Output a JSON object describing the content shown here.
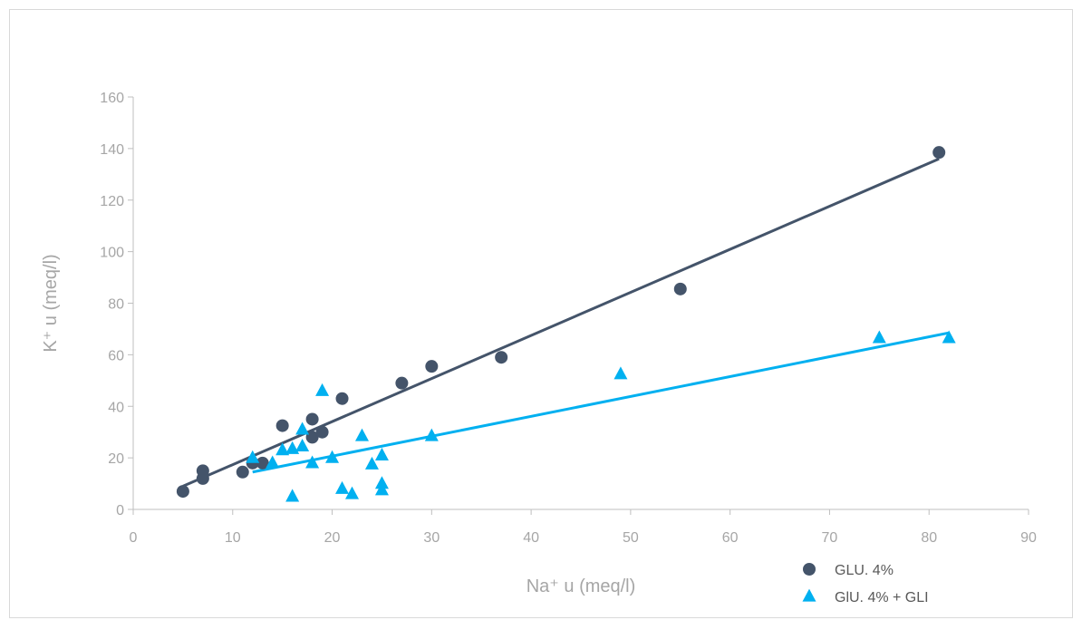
{
  "chart_data": {
    "type": "scatter",
    "xlabel": "Na⁺ u (meq/l)",
    "ylabel": "K⁺ u (meq/l)",
    "xlim": [
      0,
      90
    ],
    "ylim": [
      0,
      160
    ],
    "xticks": [
      0,
      10,
      20,
      30,
      40,
      50,
      60,
      70,
      80,
      90
    ],
    "yticks": [
      0,
      20,
      40,
      60,
      80,
      100,
      120,
      140,
      160
    ],
    "grid": false,
    "legend_position": "bottom-right",
    "series": [
      {
        "name": "GLU. 4%",
        "marker": "circle",
        "color": "#44546a",
        "points": [
          [
            5,
            7
          ],
          [
            7,
            12
          ],
          [
            7,
            15
          ],
          [
            11,
            14.5
          ],
          [
            12,
            18
          ],
          [
            13,
            18
          ],
          [
            15,
            32.5
          ],
          [
            18,
            28
          ],
          [
            18,
            35
          ],
          [
            19,
            30
          ],
          [
            21,
            43
          ],
          [
            27,
            49
          ],
          [
            30,
            55.5
          ],
          [
            37,
            59
          ],
          [
            55,
            85.5
          ],
          [
            81,
            138.5
          ]
        ],
        "trendline": [
          [
            5,
            9
          ],
          [
            81,
            136
          ]
        ]
      },
      {
        "name": "GlU. 4% + GLI",
        "marker": "triangle",
        "color": "#00b0f0",
        "points": [
          [
            12,
            20
          ],
          [
            14,
            18
          ],
          [
            15,
            23
          ],
          [
            16,
            23.5
          ],
          [
            16,
            5
          ],
          [
            17,
            24.5
          ],
          [
            17,
            31
          ],
          [
            18,
            18
          ],
          [
            19,
            46
          ],
          [
            20,
            20
          ],
          [
            21,
            8
          ],
          [
            22,
            6
          ],
          [
            23,
            28.5
          ],
          [
            24,
            17.5
          ],
          [
            25,
            21
          ],
          [
            25,
            10
          ],
          [
            25,
            7.5
          ],
          [
            30,
            28.5
          ],
          [
            49,
            52.5
          ],
          [
            75,
            66.5
          ],
          [
            82,
            66.5
          ]
        ],
        "trendline": [
          [
            12,
            14.5
          ],
          [
            82,
            68.5
          ]
        ]
      }
    ]
  }
}
